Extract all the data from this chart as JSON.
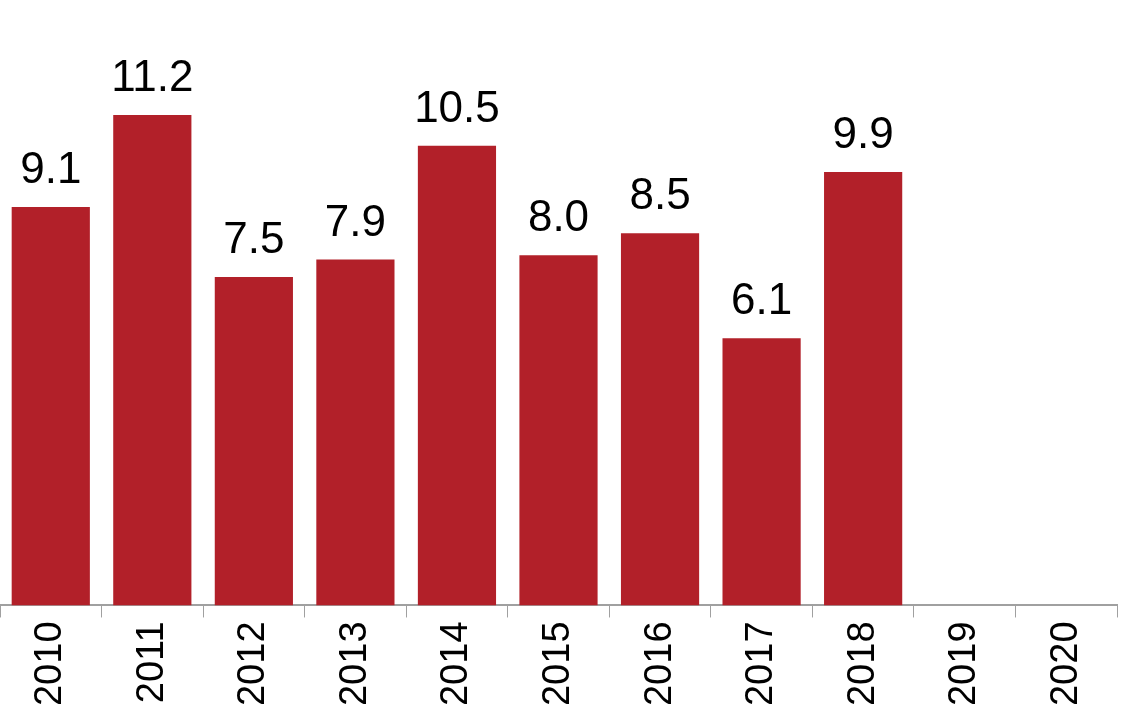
{
  "chart_data": {
    "type": "bar",
    "categories": [
      "2010",
      "2011",
      "2012",
      "2013",
      "2014",
      "2015",
      "2016",
      "2017",
      "2018",
      "2019",
      "2020"
    ],
    "values": [
      9.1,
      11.2,
      7.5,
      7.9,
      10.5,
      8.0,
      8.5,
      6.1,
      9.9,
      null,
      null
    ],
    "value_labels": [
      "9.1",
      "11.2",
      "7.5",
      "7.9",
      "10.5",
      "8.0",
      "8.5",
      "6.1",
      "9.9",
      null,
      null
    ],
    "color": "#b22029",
    "tick_labels": "x",
    "grid": false,
    "legend": false
  }
}
